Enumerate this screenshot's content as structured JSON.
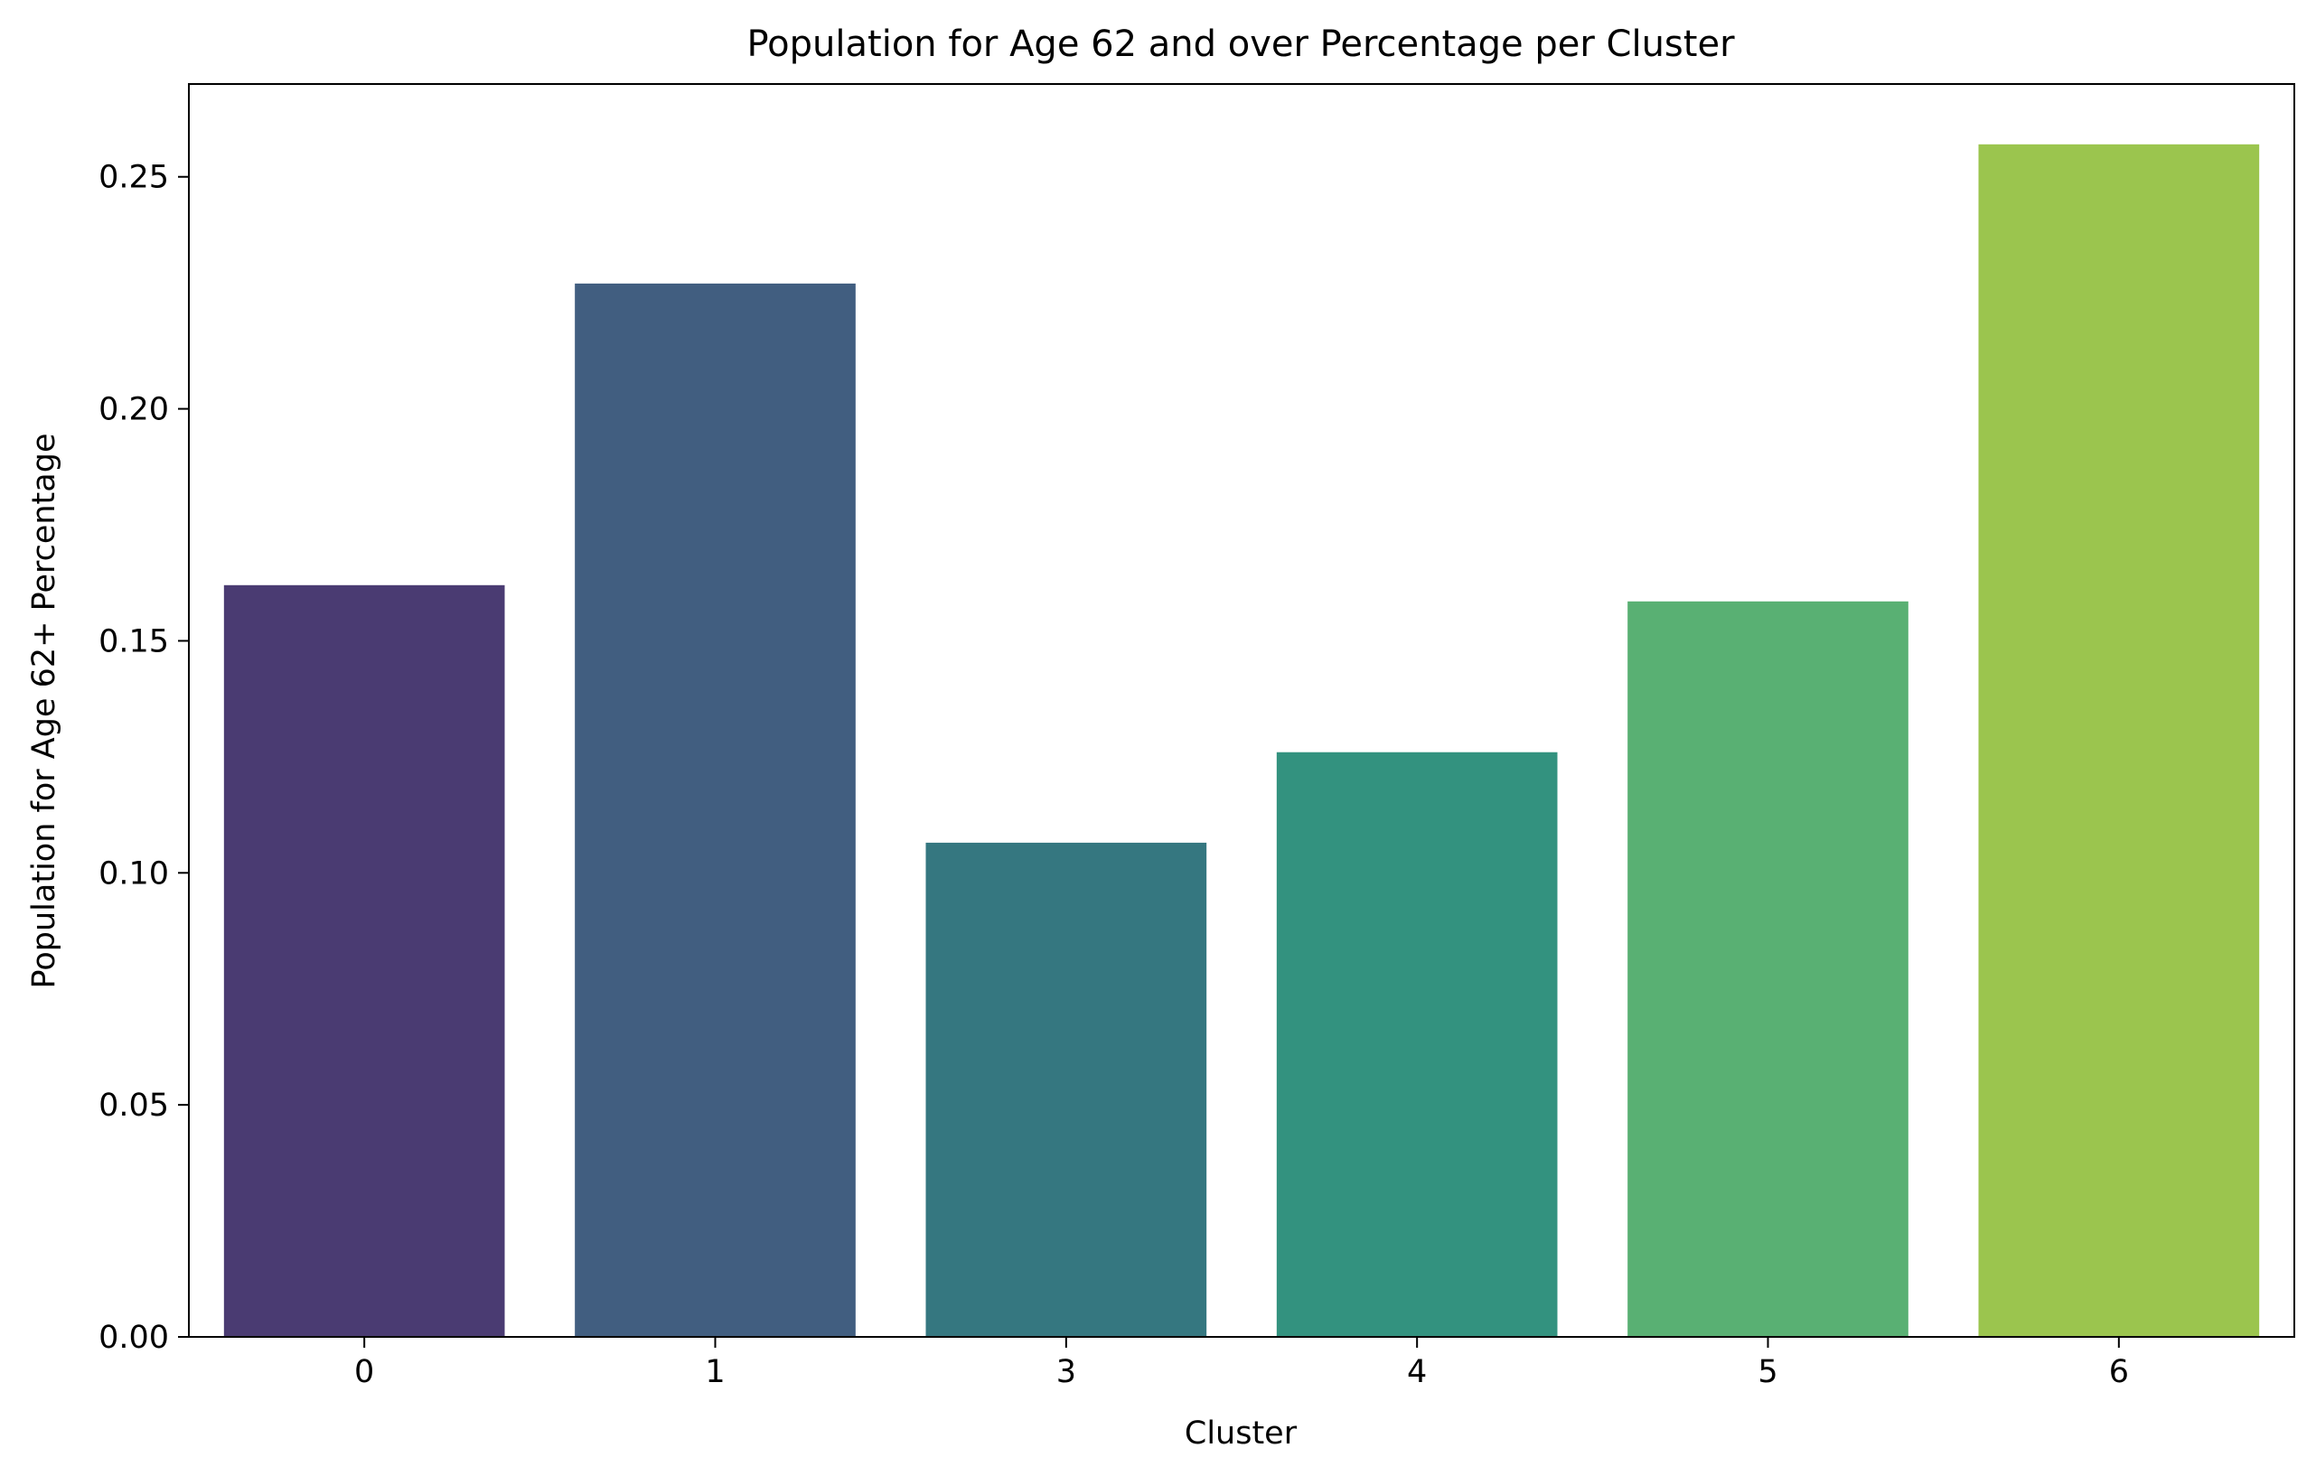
{
  "chart_data": {
    "type": "bar",
    "title": "Population for Age 62 and over Percentage per Cluster",
    "xlabel": "Cluster",
    "ylabel": "Population for Age 62+ Percentage",
    "categories": [
      "0",
      "1",
      "3",
      "4",
      "5",
      "6"
    ],
    "values": [
      0.162,
      0.227,
      0.1065,
      0.126,
      0.1585,
      0.257
    ],
    "colors": [
      "#4a3b72",
      "#415e80",
      "#357780",
      "#33927f",
      "#59b073",
      "#9bc54e"
    ],
    "ylim": [
      0,
      0.27
    ],
    "yticks": [
      0,
      0.05,
      0.1,
      0.15,
      0.2,
      0.25
    ],
    "ytick_labels": [
      "0.00",
      "0.05",
      "0.10",
      "0.15",
      "0.20",
      "0.25"
    ],
    "grid": false,
    "legend": "none"
  }
}
